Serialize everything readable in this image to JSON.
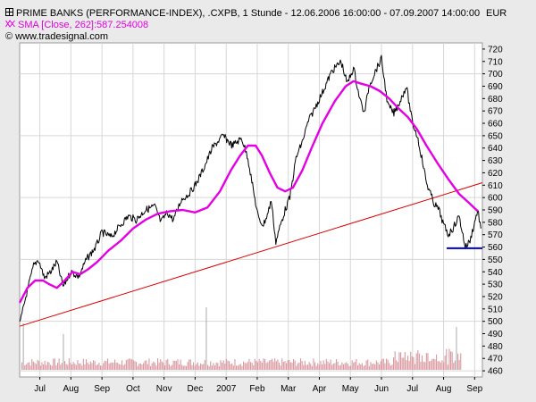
{
  "header": {
    "line1": "PRIME BANKS (PERFORMANCE-INDEX), .CXPB, 1 Stunde - 12.06.2006 16:00:00 - 07.09.2007 14:00:00",
    "unit": "EUR",
    "line2": "SMA [Close, 262]:587.254008",
    "line3": "www.tradesignal.com",
    "icons": [
      "chart-symbol-icon",
      "sma-symbol-icon",
      "copyright-icon"
    ]
  },
  "colors": {
    "price": "#000000",
    "sma": "#e400e4",
    "trendline": "#dd0000",
    "support": "#0000cc",
    "volume": "#d99aa0",
    "volume_spike": "#b0b0b0",
    "grid": "#d6d6d6",
    "plot_bg": "#ffffff",
    "frame_bg": "#eaeaea"
  },
  "chart_data": {
    "type": "line",
    "title": "PRIME BANKS (PERFORMANCE-INDEX), .CXPB, 1 Stunde - 12.06.2006 16:00:00 - 07.09.2007 14:00:00",
    "ylabel": "EUR",
    "ylim": [
      455,
      725
    ],
    "y_ticks": [
      720,
      710,
      700,
      690,
      680,
      670,
      660,
      650,
      640,
      630,
      620,
      610,
      600,
      590,
      580,
      570,
      560,
      550,
      540,
      530,
      520,
      510,
      500,
      490,
      480,
      470,
      460
    ],
    "x_tick_labels": [
      "Jul",
      "Aug",
      "Sep",
      "Oct",
      "Nov",
      "Dec",
      "2007",
      "Feb",
      "Mar",
      "Apr",
      "May",
      "Jun",
      "Jul",
      "Aug",
      "Sep"
    ],
    "x_ticks_month": [
      1,
      2,
      3,
      4,
      5,
      6,
      7,
      8,
      9,
      10,
      11,
      12,
      13,
      14,
      15
    ],
    "x_range_months": [
      0.35,
      15.25
    ],
    "series": [
      {
        "name": "PRIME BANKS (Close)",
        "months": [
          0.35,
          0.55,
          0.8,
          0.95,
          1.15,
          1.35,
          1.55,
          1.75,
          2.0,
          2.25,
          2.5,
          2.8,
          3.0,
          3.3,
          3.6,
          3.85,
          4.1,
          4.4,
          4.7,
          4.9,
          5.1,
          5.3,
          5.55,
          5.8,
          6.05,
          6.3,
          6.55,
          6.9,
          7.2,
          7.5,
          7.7,
          7.9,
          8.05,
          8.2,
          8.35,
          8.45,
          8.6,
          8.75,
          8.9,
          9.05,
          9.25,
          9.45,
          9.65,
          9.85,
          10.1,
          10.4,
          10.7,
          10.9,
          11.1,
          11.3,
          11.45,
          11.6,
          11.8,
          12.0,
          12.2,
          12.4,
          12.6,
          12.8,
          13.0,
          13.15,
          13.3,
          13.45,
          13.55,
          13.7,
          13.85,
          14.0,
          14.15,
          14.3,
          14.5,
          14.7,
          14.85,
          15.0,
          15.1,
          15.2
        ],
        "values": [
          497,
          520,
          545,
          550,
          535,
          540,
          548,
          528,
          540,
          536,
          550,
          560,
          572,
          568,
          578,
          585,
          582,
          590,
          593,
          580,
          588,
          582,
          598,
          603,
          612,
          625,
          640,
          650,
          642,
          648,
          632,
          602,
          582,
          578,
          588,
          598,
          564,
          578,
          590,
          600,
          632,
          645,
          662,
          672,
          685,
          702,
          710,
          692,
          705,
          680,
          668,
          690,
          702,
          712,
          675,
          668,
          678,
          690,
          660,
          650,
          632,
          612,
          605,
          595,
          590,
          578,
          570,
          575,
          585,
          560,
          565,
          580,
          590,
          575
        ]
      },
      {
        "name": "SMA [Close, 262]",
        "last_value": "587.254008",
        "months": [
          0.35,
          0.6,
          0.85,
          1.1,
          1.3,
          1.55,
          1.8,
          2.05,
          2.3,
          2.55,
          2.85,
          3.2,
          3.6,
          4.0,
          4.4,
          4.8,
          5.2,
          5.6,
          6.0,
          6.4,
          6.8,
          7.15,
          7.45,
          7.7,
          7.95,
          8.15,
          8.4,
          8.65,
          8.9,
          9.15,
          9.45,
          9.75,
          10.1,
          10.5,
          10.85,
          11.1,
          11.35,
          11.65,
          11.95,
          12.25,
          12.55,
          12.85,
          13.15,
          13.45,
          13.8,
          14.15,
          14.5,
          14.85,
          15.1
        ],
        "values": [
          515,
          527,
          533,
          533,
          530,
          527,
          533,
          540,
          538,
          542,
          548,
          557,
          565,
          575,
          582,
          587,
          589,
          590,
          588,
          592,
          605,
          622,
          634,
          642,
          642,
          634,
          620,
          608,
          605,
          608,
          622,
          640,
          660,
          678,
          690,
          694,
          692,
          690,
          686,
          680,
          672,
          665,
          655,
          642,
          628,
          615,
          603,
          595,
          589
        ]
      },
      {
        "name": "Trendline",
        "months": [
          0.35,
          15.25
        ],
        "values": [
          496,
          612
        ]
      },
      {
        "name": "Support",
        "months": [
          14.1,
          15.25
        ],
        "values": [
          559,
          559
        ]
      }
    ]
  }
}
